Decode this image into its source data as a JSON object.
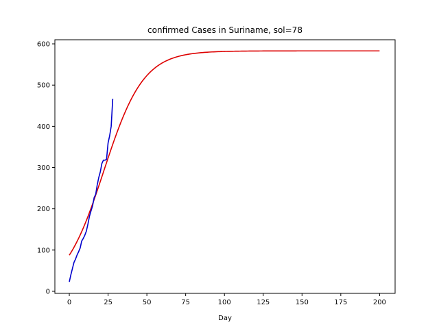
{
  "chart_data": {
    "type": "line",
    "title": "confirmed Cases in Suriname, sol=78",
    "xlabel": "Day",
    "ylabel": "",
    "xlim": [
      -9.3,
      210
    ],
    "ylim": [
      -5,
      610
    ],
    "xticks": [
      0,
      25,
      50,
      75,
      100,
      125,
      150,
      175,
      200
    ],
    "yticks": [
      0,
      100,
      200,
      300,
      400,
      500,
      600
    ],
    "grid": false,
    "legend": "none",
    "series": [
      {
        "color": "#0000cc",
        "kind": "observed",
        "x": [
          0,
          1,
          2,
          3,
          4,
          5,
          6,
          7,
          8,
          9,
          10,
          11,
          12,
          13,
          14,
          15,
          16,
          17,
          18,
          19,
          20,
          21,
          22,
          23,
          24,
          25,
          26,
          27,
          28
        ],
        "y": [
          23,
          40,
          55,
          70,
          78,
          88,
          96,
          105,
          122,
          128,
          136,
          146,
          163,
          182,
          195,
          207,
          227,
          235,
          258,
          276,
          290,
          310,
          318,
          318,
          320,
          360,
          377,
          400,
          467
        ]
      },
      {
        "color": "#dd0000",
        "kind": "fit",
        "model": "logistic",
        "L": 583,
        "k": 0.078,
        "t0": 22.2,
        "x_range": [
          0,
          200
        ]
      }
    ]
  }
}
